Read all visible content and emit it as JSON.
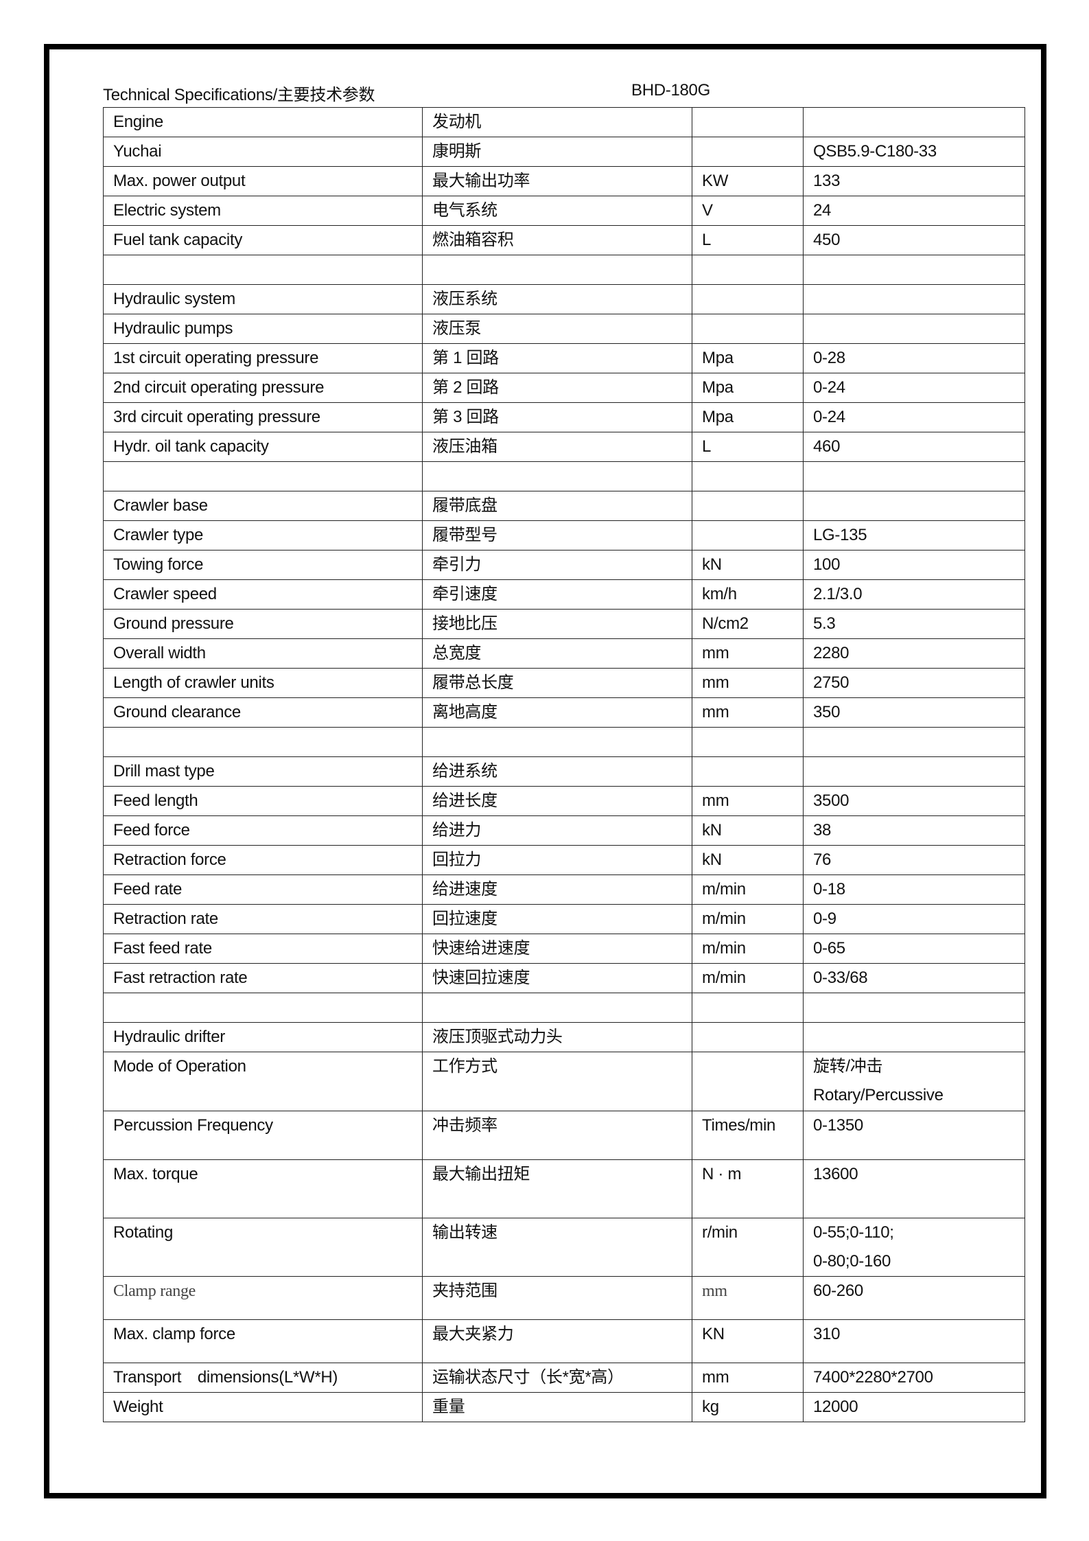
{
  "header": {
    "title": "Technical Specifications/主要技术参数",
    "model": "BHD-180G"
  },
  "rows": [
    {
      "en": "Engine",
      "cn": "发动机",
      "unit": "",
      "value": ""
    },
    {
      "en": "Yuchai",
      "cn": "康明斯",
      "unit": "",
      "value": "QSB5.9-C180-33"
    },
    {
      "en": "Max. power output",
      "cn": "最大输出功率",
      "unit": "KW",
      "value": "133"
    },
    {
      "en": "Electric system",
      "cn": "电气系统",
      "unit": "V",
      "value": "24"
    },
    {
      "en": "Fuel tank capacity",
      "cn": "燃油箱容积",
      "unit": "L",
      "value": "450"
    },
    {
      "en": "",
      "cn": "",
      "unit": "",
      "value": ""
    },
    {
      "en": "Hydraulic system",
      "cn": "液压系统",
      "unit": "",
      "value": ""
    },
    {
      "en": "Hydraulic pumps",
      "cn": "液压泵",
      "unit": "",
      "value": ""
    },
    {
      "en": "1st circuit operating pressure",
      "cn": "第 1 回路",
      "unit": "Mpa",
      "value": "0-28"
    },
    {
      "en": "2nd circuit operating pressure",
      "cn": "第 2 回路",
      "unit": "Mpa",
      "value": "0-24"
    },
    {
      "en": "3rd circuit operating pressure",
      "cn": "第 3 回路",
      "unit": "Mpa",
      "value": "0-24"
    },
    {
      "en": "Hydr. oil tank capacity",
      "cn": "液压油箱",
      "unit": "L",
      "value": "460"
    },
    {
      "en": "",
      "cn": "",
      "unit": "",
      "value": ""
    },
    {
      "en": "Crawler base",
      "cn": "履带底盘",
      "unit": "",
      "value": ""
    },
    {
      "en": "Crawler type",
      "cn": "履带型号",
      "unit": "",
      "value": "LG-135"
    },
    {
      "en": "Towing force",
      "cn": "牵引力",
      "unit": "kN",
      "value": "100"
    },
    {
      "en": "Crawler speed",
      "cn": "牵引速度",
      "unit": "km/h",
      "value": "2.1/3.0"
    },
    {
      "en": "Ground pressure",
      "cn": "接地比压",
      "unit": "N/cm2",
      "value": "5.3"
    },
    {
      "en": "Overall width",
      "cn": "总宽度",
      "unit": "mm",
      "value": "2280"
    },
    {
      "en": "Length of crawler units",
      "cn": "履带总长度",
      "unit": "mm",
      "value": "2750"
    },
    {
      "en": "Ground clearance",
      "cn": "离地高度",
      "unit": "mm",
      "value": "350"
    },
    {
      "en": "",
      "cn": "",
      "unit": "",
      "value": ""
    },
    {
      "en": "Drill mast type",
      "cn": "给进系统",
      "unit": "",
      "value": ""
    },
    {
      "en": "Feed length",
      "cn": "给进长度",
      "unit": "mm",
      "value": "3500"
    },
    {
      "en": "Feed force",
      "cn": "给进力",
      "unit": "kN",
      "value": "38"
    },
    {
      "en": "Retraction force",
      "cn": "回拉力",
      "unit": "kN",
      "value": "76"
    },
    {
      "en": "Feed rate",
      "cn": "给进速度",
      "unit": "m/min",
      "value": "0-18"
    },
    {
      "en": "Retraction rate",
      "cn": "回拉速度",
      "unit": "m/min",
      "value": "0-9"
    },
    {
      "en": "Fast feed rate",
      "cn": "快速给进速度",
      "unit": "m/min",
      "value": "0-65"
    },
    {
      "en": "Fast retraction rate",
      "cn": "快速回拉速度",
      "unit": "m/min",
      "value": "0-33/68"
    },
    {
      "en": "",
      "cn": "",
      "unit": "",
      "value": ""
    },
    {
      "en": "Hydraulic drifter",
      "cn": "液压顶驱式动力头",
      "unit": "",
      "value": ""
    },
    {
      "en": "Mode of Operation",
      "cn": "工作方式",
      "unit": "",
      "value": "旋转/冲击",
      "value2": "Rotary/Percussive"
    },
    {
      "en": "Percussion Frequency",
      "cn": "冲击频率",
      "unit": "Times/min",
      "value": "0-1350"
    },
    {
      "en": "Max. torque",
      "cn": "最大输出扭矩",
      "unit": "N · m",
      "value": "13600"
    },
    {
      "en": "Rotating",
      "cn": "输出转速",
      "unit": "r/min",
      "value": "0-55;0-110;",
      "value2": "0-80;0-160"
    },
    {
      "en": "Clamp range",
      "cn": "夹持范围",
      "unit": "mm",
      "value": "60-260"
    },
    {
      "en": "Max. clamp force",
      "cn": "最大夹紧力",
      "unit": "KN",
      "value": "310"
    },
    {
      "en": "Transport　dimensions(L*W*H)",
      "cn": "运输状态尺寸（长*宽*高）",
      "unit": "mm",
      "value": "7400*2280*2700"
    },
    {
      "en": "Weight",
      "cn": "重量",
      "unit": "kg",
      "value": "12000"
    }
  ]
}
